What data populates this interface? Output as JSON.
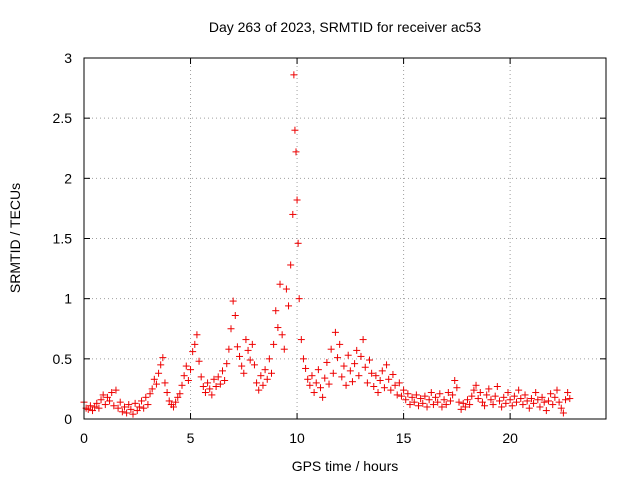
{
  "chart_data": {
    "type": "scatter",
    "title": "Day 263 of 2023, SRMTID for receiver ac53",
    "xlabel": "GPS time / hours",
    "ylabel": "SRMTID / TECUs",
    "xlim": [
      0,
      24.5
    ],
    "ylim": [
      0,
      3
    ],
    "x_ticks": [
      0,
      5,
      10,
      15,
      20
    ],
    "x_tick_labels": [
      "0",
      "5",
      "10",
      "15",
      "20"
    ],
    "y_ticks": [
      0,
      0.5,
      1,
      1.5,
      2,
      2.5,
      3
    ],
    "y_tick_labels": [
      "0",
      "0.5",
      "1",
      "1.5",
      "2",
      "2.5",
      "3"
    ],
    "grid": true,
    "marker": "plus",
    "marker_color": "#ee0000",
    "series": [
      {
        "name": "SRMTID ac53",
        "points": [
          [
            0.0,
            0.14
          ],
          [
            0.1,
            0.09
          ],
          [
            0.2,
            0.08
          ],
          [
            0.3,
            0.11
          ],
          [
            0.4,
            0.07
          ],
          [
            0.5,
            0.1
          ],
          [
            0.6,
            0.13
          ],
          [
            0.7,
            0.09
          ],
          [
            0.8,
            0.16
          ],
          [
            0.9,
            0.2
          ],
          [
            1.0,
            0.12
          ],
          [
            1.1,
            0.18
          ],
          [
            1.2,
            0.15
          ],
          [
            1.3,
            0.22
          ],
          [
            1.4,
            0.11
          ],
          [
            1.5,
            0.24
          ],
          [
            1.6,
            0.09
          ],
          [
            1.7,
            0.14
          ],
          [
            1.8,
            0.06
          ],
          [
            1.9,
            0.1
          ],
          [
            2.0,
            0.05
          ],
          [
            2.1,
            0.12
          ],
          [
            2.2,
            0.08
          ],
          [
            2.3,
            0.04
          ],
          [
            2.4,
            0.13
          ],
          [
            2.5,
            0.07
          ],
          [
            2.6,
            0.1
          ],
          [
            2.7,
            0.15
          ],
          [
            2.8,
            0.09
          ],
          [
            2.9,
            0.18
          ],
          [
            3.0,
            0.12
          ],
          [
            3.1,
            0.21
          ],
          [
            3.2,
            0.25
          ],
          [
            3.3,
            0.33
          ],
          [
            3.4,
            0.29
          ],
          [
            3.5,
            0.38
          ],
          [
            3.6,
            0.45
          ],
          [
            3.7,
            0.51
          ],
          [
            3.8,
            0.3
          ],
          [
            3.9,
            0.22
          ],
          [
            4.0,
            0.15
          ],
          [
            4.1,
            0.12
          ],
          [
            4.2,
            0.1
          ],
          [
            4.3,
            0.14
          ],
          [
            4.4,
            0.18
          ],
          [
            4.5,
            0.21
          ],
          [
            4.6,
            0.28
          ],
          [
            4.7,
            0.36
          ],
          [
            4.8,
            0.44
          ],
          [
            4.9,
            0.32
          ],
          [
            5.0,
            0.41
          ],
          [
            5.1,
            0.56
          ],
          [
            5.2,
            0.62
          ],
          [
            5.3,
            0.7
          ],
          [
            5.4,
            0.48
          ],
          [
            5.5,
            0.35
          ],
          [
            5.6,
            0.27
          ],
          [
            5.7,
            0.22
          ],
          [
            5.8,
            0.3
          ],
          [
            5.9,
            0.25
          ],
          [
            6.0,
            0.2
          ],
          [
            6.1,
            0.33
          ],
          [
            6.2,
            0.27
          ],
          [
            6.3,
            0.35
          ],
          [
            6.4,
            0.29
          ],
          [
            6.5,
            0.4
          ],
          [
            6.6,
            0.32
          ],
          [
            6.7,
            0.46
          ],
          [
            6.8,
            0.58
          ],
          [
            6.9,
            0.75
          ],
          [
            7.0,
            0.98
          ],
          [
            7.1,
            0.86
          ],
          [
            7.2,
            0.6
          ],
          [
            7.3,
            0.52
          ],
          [
            7.4,
            0.44
          ],
          [
            7.5,
            0.38
          ],
          [
            7.6,
            0.66
          ],
          [
            7.7,
            0.57
          ],
          [
            7.8,
            0.49
          ],
          [
            7.9,
            0.62
          ],
          [
            8.0,
            0.45
          ],
          [
            8.1,
            0.3
          ],
          [
            8.2,
            0.24
          ],
          [
            8.3,
            0.36
          ],
          [
            8.4,
            0.28
          ],
          [
            8.5,
            0.41
          ],
          [
            8.6,
            0.33
          ],
          [
            8.7,
            0.5
          ],
          [
            8.8,
            0.38
          ],
          [
            8.9,
            0.62
          ],
          [
            9.0,
            0.9
          ],
          [
            9.1,
            0.76
          ],
          [
            9.2,
            1.12
          ],
          [
            9.3,
            0.7
          ],
          [
            9.4,
            0.58
          ],
          [
            9.5,
            1.08
          ],
          [
            9.6,
            0.94
          ],
          [
            9.7,
            1.28
          ],
          [
            9.8,
            1.7
          ],
          [
            9.85,
            2.86
          ],
          [
            9.9,
            2.4
          ],
          [
            9.95,
            2.22
          ],
          [
            10.0,
            1.82
          ],
          [
            10.05,
            1.46
          ],
          [
            10.1,
            1.0
          ],
          [
            10.2,
            0.66
          ],
          [
            10.3,
            0.5
          ],
          [
            10.4,
            0.42
          ],
          [
            10.5,
            0.33
          ],
          [
            10.6,
            0.28
          ],
          [
            10.7,
            0.36
          ],
          [
            10.8,
            0.22
          ],
          [
            10.9,
            0.3
          ],
          [
            11.0,
            0.41
          ],
          [
            11.1,
            0.26
          ],
          [
            11.2,
            0.18
          ],
          [
            11.3,
            0.34
          ],
          [
            11.4,
            0.47
          ],
          [
            11.5,
            0.29
          ],
          [
            11.6,
            0.58
          ],
          [
            11.7,
            0.38
          ],
          [
            11.8,
            0.72
          ],
          [
            11.9,
            0.51
          ],
          [
            12.0,
            0.62
          ],
          [
            12.1,
            0.35
          ],
          [
            12.2,
            0.44
          ],
          [
            12.3,
            0.28
          ],
          [
            12.4,
            0.53
          ],
          [
            12.5,
            0.4
          ],
          [
            12.6,
            0.31
          ],
          [
            12.7,
            0.46
          ],
          [
            12.8,
            0.57
          ],
          [
            12.9,
            0.36
          ],
          [
            13.0,
            0.52
          ],
          [
            13.1,
            0.66
          ],
          [
            13.2,
            0.43
          ],
          [
            13.3,
            0.3
          ],
          [
            13.4,
            0.49
          ],
          [
            13.5,
            0.38
          ],
          [
            13.6,
            0.27
          ],
          [
            13.7,
            0.36
          ],
          [
            13.8,
            0.22
          ],
          [
            13.9,
            0.32
          ],
          [
            14.0,
            0.4
          ],
          [
            14.1,
            0.26
          ],
          [
            14.2,
            0.45
          ],
          [
            14.3,
            0.33
          ],
          [
            14.4,
            0.24
          ],
          [
            14.5,
            0.37
          ],
          [
            14.6,
            0.28
          ],
          [
            14.7,
            0.2
          ],
          [
            14.8,
            0.3
          ],
          [
            14.9,
            0.19
          ],
          [
            15.0,
            0.24
          ],
          [
            15.1,
            0.16
          ],
          [
            15.2,
            0.21
          ],
          [
            15.3,
            0.12
          ],
          [
            15.4,
            0.18
          ],
          [
            15.5,
            0.14
          ],
          [
            15.6,
            0.2
          ],
          [
            15.7,
            0.11
          ],
          [
            15.8,
            0.17
          ],
          [
            15.9,
            0.13
          ],
          [
            16.0,
            0.19
          ],
          [
            16.1,
            0.1
          ],
          [
            16.2,
            0.16
          ],
          [
            16.3,
            0.22
          ],
          [
            16.4,
            0.12
          ],
          [
            16.5,
            0.18
          ],
          [
            16.6,
            0.14
          ],
          [
            16.7,
            0.21
          ],
          [
            16.8,
            0.1
          ],
          [
            16.9,
            0.16
          ],
          [
            17.0,
            0.12
          ],
          [
            17.1,
            0.22
          ],
          [
            17.2,
            0.15
          ],
          [
            17.3,
            0.2
          ],
          [
            17.4,
            0.32
          ],
          [
            17.5,
            0.26
          ],
          [
            17.6,
            0.14
          ],
          [
            17.7,
            0.08
          ],
          [
            17.8,
            0.13
          ],
          [
            17.9,
            0.1
          ],
          [
            18.0,
            0.16
          ],
          [
            18.1,
            0.12
          ],
          [
            18.2,
            0.19
          ],
          [
            18.3,
            0.24
          ],
          [
            18.4,
            0.28
          ],
          [
            18.5,
            0.17
          ],
          [
            18.6,
            0.22
          ],
          [
            18.7,
            0.14
          ],
          [
            18.8,
            0.11
          ],
          [
            18.9,
            0.2
          ],
          [
            19.0,
            0.25
          ],
          [
            19.1,
            0.16
          ],
          [
            19.2,
            0.12
          ],
          [
            19.3,
            0.19
          ],
          [
            19.4,
            0.27
          ],
          [
            19.5,
            0.15
          ],
          [
            19.6,
            0.1
          ],
          [
            19.7,
            0.18
          ],
          [
            19.8,
            0.13
          ],
          [
            19.9,
            0.22
          ],
          [
            20.0,
            0.16
          ],
          [
            20.1,
            0.11
          ],
          [
            20.2,
            0.19
          ],
          [
            20.3,
            0.14
          ],
          [
            20.4,
            0.24
          ],
          [
            20.5,
            0.17
          ],
          [
            20.6,
            0.12
          ],
          [
            20.7,
            0.2
          ],
          [
            20.8,
            0.15
          ],
          [
            20.9,
            0.09
          ],
          [
            21.0,
            0.17
          ],
          [
            21.1,
            0.13
          ],
          [
            21.2,
            0.22
          ],
          [
            21.3,
            0.16
          ],
          [
            21.4,
            0.1
          ],
          [
            21.5,
            0.18
          ],
          [
            21.6,
            0.14
          ],
          [
            21.7,
            0.07
          ],
          [
            21.8,
            0.15
          ],
          [
            21.9,
            0.21
          ],
          [
            22.0,
            0.12
          ],
          [
            22.1,
            0.18
          ],
          [
            22.2,
            0.24
          ],
          [
            22.3,
            0.14
          ],
          [
            22.4,
            0.09
          ],
          [
            22.5,
            0.05
          ],
          [
            22.6,
            0.16
          ],
          [
            22.7,
            0.22
          ],
          [
            22.8,
            0.17
          ]
        ]
      }
    ]
  }
}
